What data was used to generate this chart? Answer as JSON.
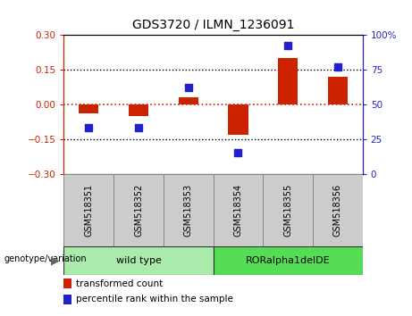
{
  "title": "GDS3720 / ILMN_1236091",
  "samples": [
    "GSM518351",
    "GSM518352",
    "GSM518353",
    "GSM518354",
    "GSM518355",
    "GSM518356"
  ],
  "bar_values": [
    -0.04,
    -0.05,
    0.03,
    -0.13,
    0.2,
    0.12
  ],
  "dot_values": [
    33,
    33,
    62,
    15,
    92,
    77
  ],
  "bar_color": "#cc2200",
  "dot_color": "#2222cc",
  "zero_line_color": "#cc2200",
  "ylim_left": [
    -0.3,
    0.3
  ],
  "ylim_right": [
    0,
    100
  ],
  "yticks_left": [
    -0.3,
    -0.15,
    0,
    0.15,
    0.3
  ],
  "yticks_right": [
    0,
    25,
    50,
    75,
    100
  ],
  "hlines": [
    -0.15,
    0.15
  ],
  "genotype_groups": [
    {
      "label": "wild type",
      "start": 0,
      "end": 2,
      "color": "#aaeaaa"
    },
    {
      "label": "RORalpha1delDE",
      "start": 3,
      "end": 5,
      "color": "#55dd55"
    }
  ],
  "genotype_label": "genotype/variation",
  "legend_items": [
    {
      "color": "#cc2200",
      "label": "transformed count"
    },
    {
      "color": "#2222cc",
      "label": "percentile rank within the sample"
    }
  ],
  "bar_width": 0.4,
  "dot_size": 40,
  "background_color": "#ffffff",
  "plot_bg_color": "#ffffff",
  "tick_label_color_left": "#cc2200",
  "tick_label_color_right": "#2222cc",
  "sample_box_color": "#cccccc",
  "sample_box_edge": "#888888"
}
